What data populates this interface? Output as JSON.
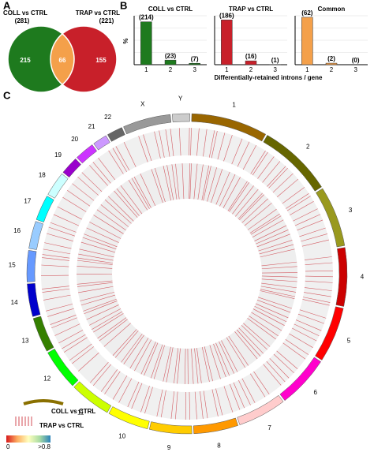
{
  "panel_a": {
    "label": "A",
    "sets": [
      {
        "name": "COLL vs CTRL",
        "total": "(281)",
        "color": "#1e7a1e"
      },
      {
        "name": "TRAP vs CTRL",
        "total": "(221)",
        "color": "#c8202a"
      }
    ],
    "overlap_color": "#f4a04a",
    "regions": [
      215,
      66,
      155
    ]
  },
  "panel_b": {
    "label": "B",
    "y_label": "%",
    "x_label": "Differentially-retained introns / gene",
    "charts": [
      {
        "type": "bar",
        "title": "COLL vs CTRL",
        "color": "#1e7a1e",
        "categories": [
          "1",
          "2",
          "3"
        ],
        "values": [
          214,
          23,
          7
        ],
        "value_labels": [
          "(214)",
          "(23)",
          "(7)"
        ],
        "ylim": [
          0,
          244
        ]
      },
      {
        "type": "bar",
        "title": "TRAP vs CTRL",
        "color": "#c8202a",
        "categories": [
          "1",
          "2",
          "3"
        ],
        "values": [
          186,
          16,
          1
        ],
        "value_labels": [
          "(186)",
          "(16)",
          "(1)"
        ],
        "ylim": [
          0,
          203
        ]
      },
      {
        "type": "bar",
        "title": "Common",
        "color": "#f4a04a",
        "categories": [
          "1",
          "2",
          "3"
        ],
        "values": [
          62,
          2,
          0
        ],
        "value_labels": [
          "(62)",
          "(2)",
          "(0)"
        ],
        "ylim": [
          0,
          64
        ]
      }
    ]
  },
  "panel_c": {
    "label": "C",
    "chromosomes": [
      {
        "name": "1",
        "length": 249,
        "color": "#996600"
      },
      {
        "name": "2",
        "length": 243,
        "color": "#666600"
      },
      {
        "name": "3",
        "length": 198,
        "color": "#99991e"
      },
      {
        "name": "4",
        "length": 191,
        "color": "#cc0000"
      },
      {
        "name": "5",
        "length": 181,
        "color": "#ff0000"
      },
      {
        "name": "6",
        "length": 171,
        "color": "#ff00cc"
      },
      {
        "name": "7",
        "length": 159,
        "color": "#ffcccc"
      },
      {
        "name": "8",
        "length": 145,
        "color": "#ff9900"
      },
      {
        "name": "9",
        "length": 138,
        "color": "#ffcc00"
      },
      {
        "name": "10",
        "length": 134,
        "color": "#ffff00"
      },
      {
        "name": "11",
        "length": 135,
        "color": "#ccff00"
      },
      {
        "name": "12",
        "length": 133,
        "color": "#00ff00"
      },
      {
        "name": "13",
        "length": 114,
        "color": "#358000"
      },
      {
        "name": "14",
        "length": 107,
        "color": "#0000cc"
      },
      {
        "name": "15",
        "length": 102,
        "color": "#6699ff"
      },
      {
        "name": "16",
        "length": 90,
        "color": "#99ccff"
      },
      {
        "name": "17",
        "length": 83,
        "color": "#00ffff"
      },
      {
        "name": "18",
        "length": 80,
        "color": "#ccffff"
      },
      {
        "name": "19",
        "length": 59,
        "color": "#9900cc"
      },
      {
        "name": "20",
        "length": 64,
        "color": "#cc33ff"
      },
      {
        "name": "21",
        "length": 47,
        "color": "#cc99ff"
      },
      {
        "name": "22",
        "length": 51,
        "color": "#666666"
      },
      {
        "name": "X",
        "length": 156,
        "color": "#999999"
      },
      {
        "name": "Y",
        "length": 57,
        "color": "#cccccc"
      }
    ],
    "legend": {
      "coll": "COLL vs CTRL",
      "trap": "TRAP vs CTRL",
      "scale_min": "0",
      "scale_max": ">0.8"
    }
  }
}
